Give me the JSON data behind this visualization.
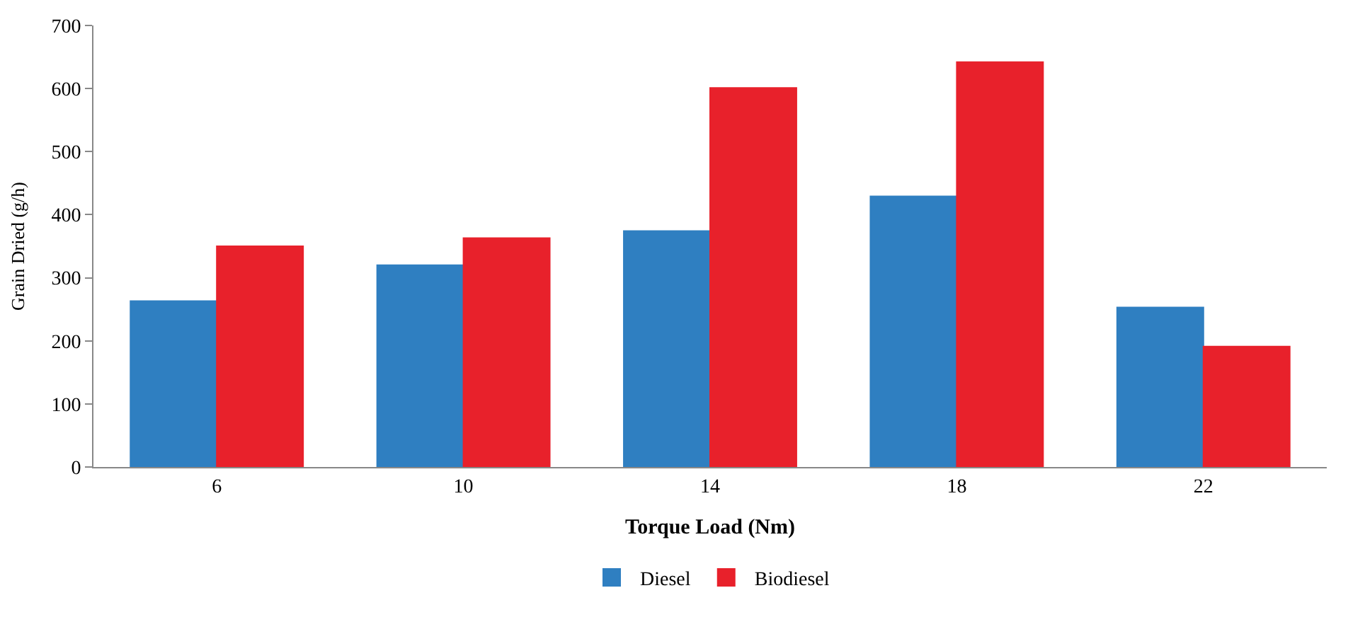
{
  "chart_data": {
    "type": "bar",
    "xlabel": "Torque Load (Nm)",
    "ylabel": "Grain Dried (g/h)",
    "categories": [
      "6",
      "10",
      "14",
      "18",
      "22"
    ],
    "series": [
      {
        "name": "Diesel",
        "color": "#2f7fc1",
        "values": [
          263,
          320,
          374,
          429,
          253
        ]
      },
      {
        "name": "Biodiesel",
        "color": "#e8212b",
        "values": [
          350,
          363,
          601,
          642,
          191
        ]
      }
    ],
    "ylim": [
      0,
      700
    ],
    "yticks": [
      0,
      100,
      200,
      300,
      400,
      500,
      600,
      700
    ],
    "legend": "bottom"
  }
}
